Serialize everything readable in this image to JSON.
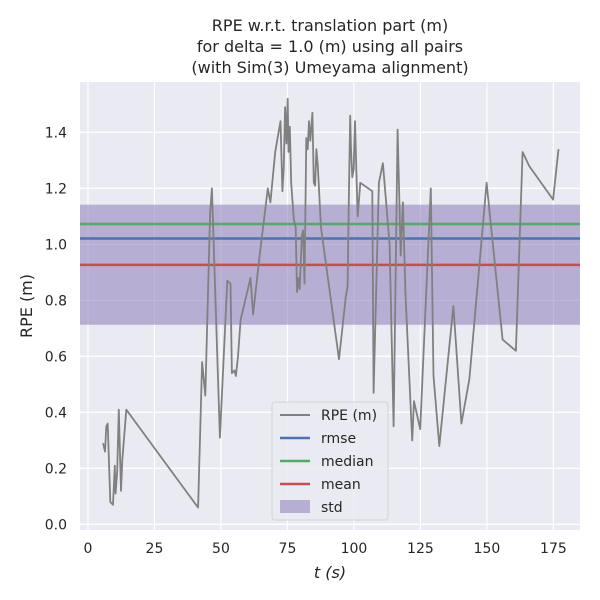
{
  "chart_data": {
    "type": "line",
    "title_lines": [
      "RPE w.r.t. translation part (m)",
      "for delta = 1.0 (m) using all pairs",
      "(with Sim(3) Umeyama alignment)"
    ],
    "xlabel": "t (s)",
    "ylabel": "RPE (m)",
    "xlim": [
      -3,
      185
    ],
    "ylim": [
      -0.02,
      1.58
    ],
    "xticks": [
      0,
      25,
      50,
      75,
      100,
      125,
      150,
      175
    ],
    "yticks": [
      0.0,
      0.2,
      0.4,
      0.6,
      0.8,
      1.0,
      1.2,
      1.4
    ],
    "grid": true,
    "legend_position": "lower-center",
    "colors": {
      "background": "#eaeaf2",
      "grid": "#ffffff",
      "rpe": "#808080",
      "rmse": "#4c72b0",
      "median": "#55a868",
      "mean": "#c44e52",
      "std": "#8172b3"
    },
    "series": [
      {
        "name": "RPE (m)",
        "x": [
          5.7,
          6.4,
          6.9,
          7.4,
          8.4,
          9.4,
          10.1,
          10.4,
          11.0,
          11.6,
          12.4,
          12.9,
          14.4,
          41.4,
          42.9,
          44.1,
          45.9,
          46.6,
          49.6,
          52.4,
          53.6,
          54.1,
          55.1,
          55.6,
          56.4,
          57.4,
          61.1,
          62.1,
          64.4,
          67.6,
          68.6,
          70.4,
          72.4,
          73.1,
          73.6,
          74.1,
          74.6,
          75.1,
          75.4,
          75.9,
          76.4,
          77.4,
          78.1,
          78.6,
          79.1,
          79.6,
          80.4,
          80.9,
          81.4,
          82.1,
          82.6,
          83.1,
          83.6,
          84.4,
          84.9,
          85.4,
          85.9,
          86.4,
          87.6,
          94.4,
          96.9,
          97.6,
          98.1,
          98.6,
          98.9,
          99.4,
          99.9,
          100.4,
          100.9,
          101.4,
          102.4,
          106.9,
          107.4,
          109.4,
          110.9,
          113.4,
          114.9,
          116.4,
          117.6,
          118.4,
          119.4,
          121.9,
          122.6,
          124.9,
          128.9,
          129.9,
          132.1,
          137.4,
          140.4,
          143.4,
          149.9,
          155.9,
          160.9,
          163.4,
          165.9,
          174.9,
          176.9
        ],
        "y": [
          0.29,
          0.26,
          0.35,
          0.36,
          0.08,
          0.07,
          0.21,
          0.11,
          0.19,
          0.41,
          0.12,
          0.23,
          0.41,
          0.06,
          0.58,
          0.46,
          1.11,
          1.2,
          0.31,
          0.87,
          0.86,
          0.54,
          0.55,
          0.53,
          0.6,
          0.73,
          0.88,
          0.75,
          0.95,
          1.2,
          1.15,
          1.33,
          1.44,
          1.19,
          1.27,
          1.49,
          1.36,
          1.52,
          1.33,
          1.42,
          1.22,
          1.09,
          1.06,
          0.83,
          0.88,
          0.84,
          1.03,
          1.05,
          0.86,
          1.38,
          1.34,
          1.44,
          1.37,
          1.47,
          1.22,
          1.21,
          1.34,
          1.28,
          1.06,
          0.59,
          0.81,
          0.85,
          1.18,
          1.46,
          1.34,
          1.24,
          1.27,
          1.44,
          1.27,
          1.1,
          1.22,
          1.19,
          0.47,
          1.22,
          1.29,
          1.0,
          0.35,
          1.41,
          0.96,
          1.15,
          0.82,
          0.3,
          0.44,
          0.34,
          1.2,
          0.53,
          0.28,
          0.78,
          0.36,
          0.52,
          1.22,
          0.66,
          0.62,
          1.33,
          1.28,
          1.16,
          1.34
        ]
      }
    ],
    "rmse": 1.021,
    "median": 1.073,
    "mean": 0.927,
    "std_band": [
      0.713,
      1.142
    ],
    "legend": [
      "RPE (m)",
      "rmse",
      "median",
      "mean",
      "std"
    ]
  }
}
